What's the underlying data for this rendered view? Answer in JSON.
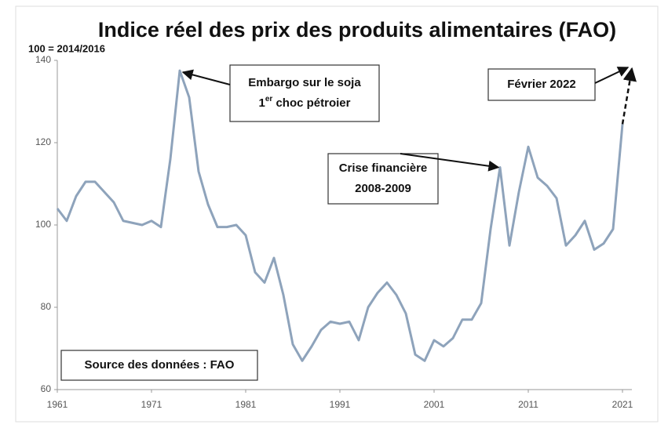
{
  "chart_data": {
    "type": "line",
    "title": "Indice réel des prix des produits alimentaires (FAO)",
    "subtitle": "100 = 2014/2016",
    "x": [
      1961,
      1962,
      1963,
      1964,
      1965,
      1966,
      1967,
      1968,
      1969,
      1970,
      1971,
      1972,
      1973,
      1974,
      1975,
      1976,
      1977,
      1978,
      1979,
      1980,
      1981,
      1982,
      1983,
      1984,
      1985,
      1986,
      1987,
      1988,
      1989,
      1990,
      1991,
      1992,
      1993,
      1994,
      1995,
      1996,
      1997,
      1998,
      1999,
      2000,
      2001,
      2002,
      2003,
      2004,
      2005,
      2006,
      2007,
      2008,
      2009,
      2010,
      2011,
      2012,
      2013,
      2014,
      2015,
      2016,
      2017,
      2018,
      2019,
      2020,
      2021
    ],
    "values": [
      104,
      101,
      107,
      110.5,
      110.5,
      108,
      105.5,
      101,
      100.5,
      100,
      101,
      99.5,
      116,
      137.5,
      131,
      113,
      105,
      99.5,
      99.5,
      100,
      97.5,
      88.5,
      86,
      92,
      83,
      71,
      67,
      70.5,
      74.5,
      76.5,
      76,
      76.5,
      72,
      80,
      83.5,
      86,
      83,
      78.5,
      68.5,
      67,
      72,
      70.5,
      72.5,
      77,
      77,
      81,
      99,
      114,
      95,
      108,
      119,
      111.5,
      109.5,
      106.5,
      95,
      97.5,
      101,
      94,
      95.5,
      99,
      124.5
    ],
    "color": "#8ea3bb",
    "projection": {
      "x": [
        2021,
        2022
      ],
      "values": [
        124.5,
        138
      ],
      "color": "#111111",
      "dashed": true
    },
    "xlim": [
      1961,
      2022
    ],
    "xticks": [
      1961,
      1971,
      1981,
      1991,
      2001,
      2011,
      2021
    ],
    "ylim": [
      60,
      140
    ],
    "yticks": [
      60,
      80,
      100,
      120,
      140
    ],
    "grid": false,
    "annotations": [
      {
        "lines": [
          [
            {
              "text": "Embargo sur le soja"
            }
          ],
          [
            {
              "text": "1"
            },
            {
              "text": "er",
              "sup": true
            },
            {
              "text": " choc pétroier"
            }
          ]
        ]
      },
      {
        "lines": [
          [
            {
              "text": "Crise financière"
            }
          ],
          [
            {
              "text": "2008-2009"
            }
          ]
        ]
      },
      {
        "lines": [
          [
            {
              "text": "Février 2022"
            }
          ]
        ]
      },
      {
        "lines": [
          [
            {
              "text": "Source des données : FAO"
            }
          ]
        ]
      }
    ]
  }
}
